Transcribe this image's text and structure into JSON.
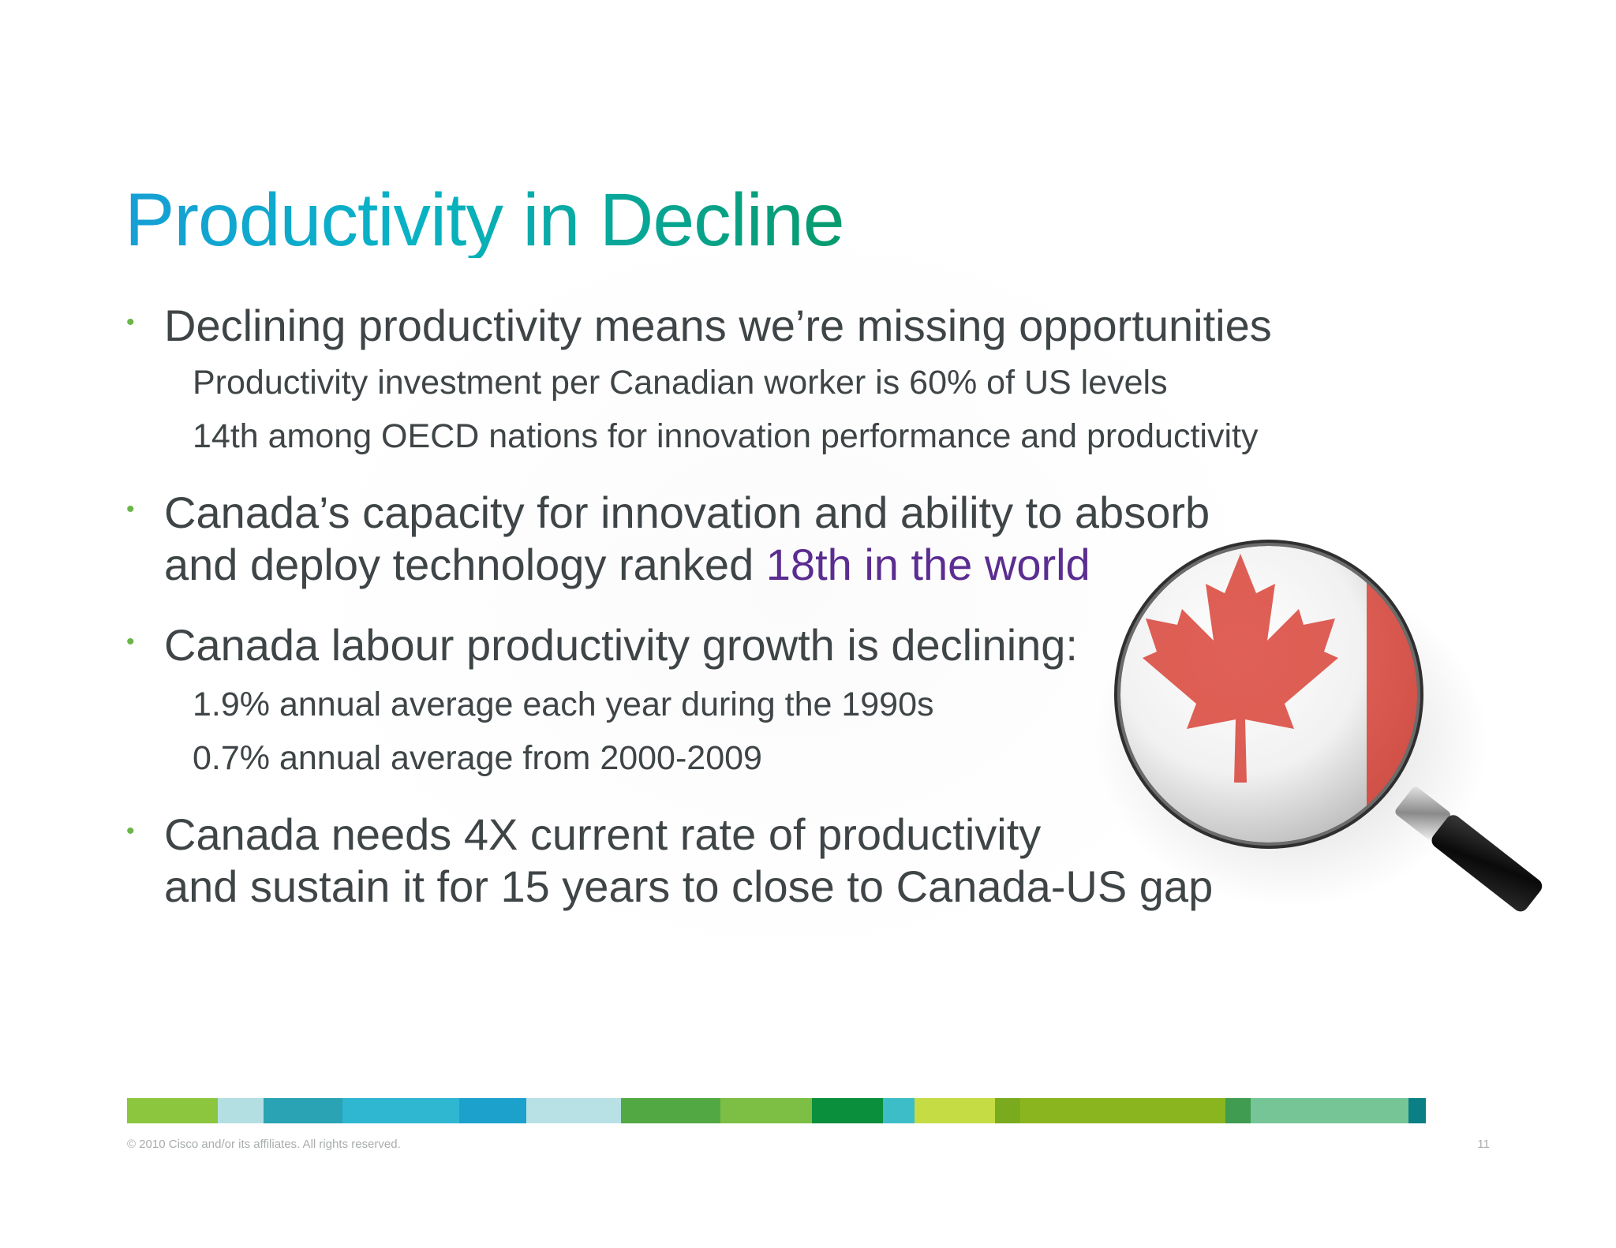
{
  "slide": {
    "title": "Productivity in Decline",
    "bullets": [
      {
        "lines": [
          "Declining productivity means we’re missing opportunities"
        ],
        "subs": [
          "Productivity investment per Canadian worker is 60% of US levels",
          "14th among OECD nations for innovation performance and productivity"
        ]
      },
      {
        "line1": "Canada’s capacity for innovation and ability to absorb",
        "line2_prefix": "and deploy technology ranked ",
        "line2_highlight": "18th in the world"
      },
      {
        "lines": [
          "Canada labour productivity growth is declining:"
        ],
        "subs": [
          "1.9% annual average each year during the 1990s",
          "0.7% annual average from 2000-2009"
        ]
      },
      {
        "lines": [
          "Canada needs 4X current rate of productivity",
          "and sustain it for 15 years to close to  Canada-US gap"
        ]
      }
    ],
    "footer": "© 2010 Cisco and/or its affiliates. All rights reserved.",
    "page_number": "11"
  },
  "colors": {
    "title_gradient_start": "#169fd6",
    "title_gradient_end": "#079a6c",
    "highlight": "#5b2d90",
    "bullet_dot": "#6bb54a",
    "body_text": "#3f4547",
    "flag_red": "#d52b1e"
  },
  "strip_colors": [
    "#8cc63f",
    "#b3dfe3",
    "#2aa3b4",
    "#2fb6d1",
    "#1ba1cc",
    "#b8e1e6",
    "#52a843",
    "#7cbf44",
    "#0a8f3c",
    "#3dbdc7",
    "#c6dc45",
    "#7aab1f",
    "#8ab51e",
    "#3f9c51",
    "#76c596",
    "#0b7f86"
  ],
  "icons": {
    "magnifier": "magnifying-glass-canada-flag-icon",
    "bullet": "bullet-dot-icon"
  }
}
